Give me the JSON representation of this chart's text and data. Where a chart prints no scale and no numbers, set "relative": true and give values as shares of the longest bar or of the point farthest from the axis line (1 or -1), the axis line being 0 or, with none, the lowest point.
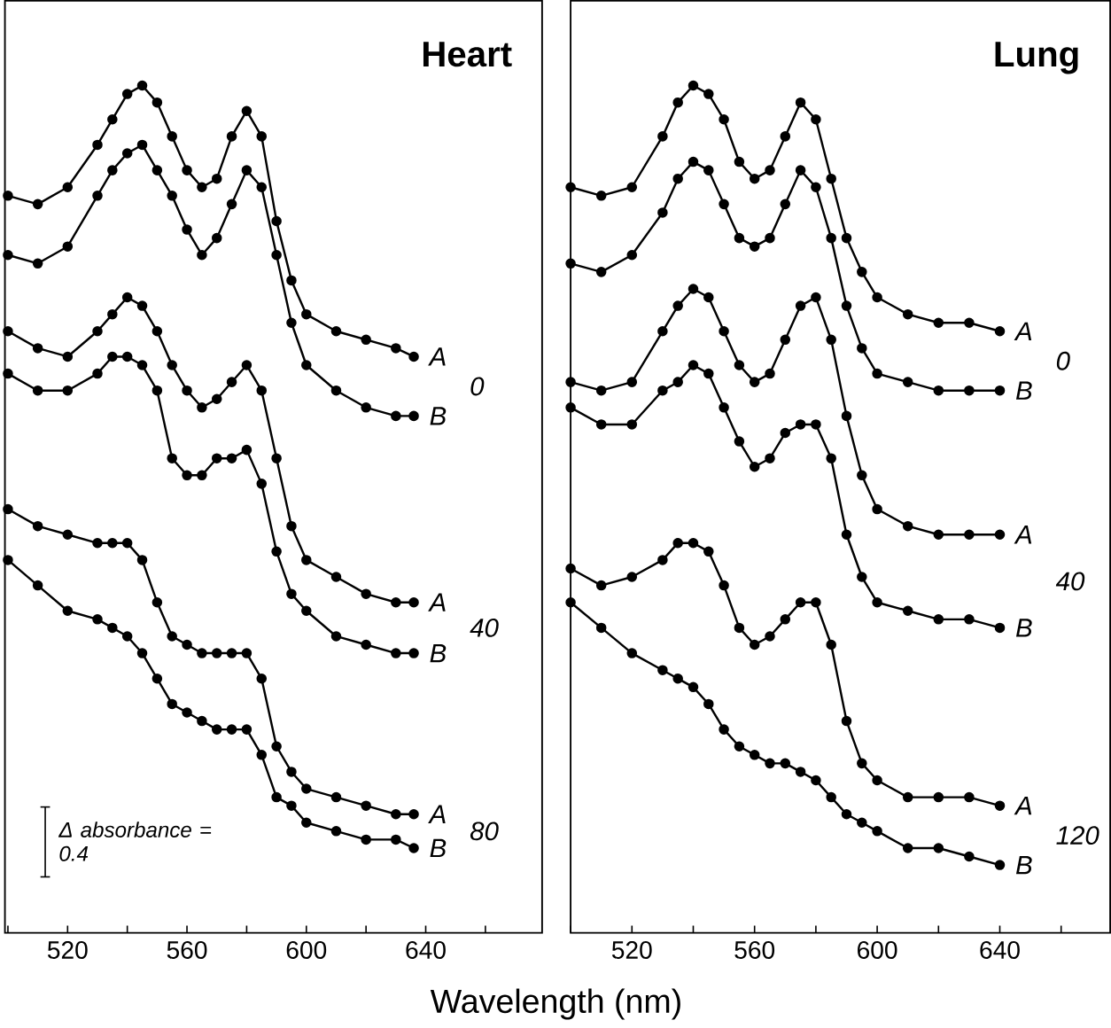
{
  "chart_data": [
    {
      "type": "line",
      "title": "Heart",
      "xlabel": "Wavelength (nm)",
      "relative": true,
      "marker": "circle",
      "line_style": "solid",
      "tick_labels": "x",
      "xlim": [
        499,
        679
      ],
      "xticks": [
        {
          "value": 500,
          "label": null
        },
        520,
        {
          "value": 540,
          "label": null
        },
        560,
        {
          "value": 580,
          "label": null
        },
        600,
        {
          "value": 620,
          "label": null
        },
        640,
        {
          "value": 660,
          "label": null
        }
      ],
      "x": [
        500,
        510,
        520,
        530,
        535,
        540,
        545,
        550,
        555,
        560,
        565,
        570,
        575,
        580,
        585,
        590,
        595,
        600,
        610,
        620,
        630,
        636
      ],
      "series": [
        {
          "name": "A",
          "color": "#000000",
          "values": [
            0.87,
            0.86,
            0.88,
            0.93,
            0.96,
            0.99,
            1.0,
            0.98,
            0.94,
            0.9,
            0.88,
            0.89,
            0.94,
            0.97,
            0.94,
            0.84,
            0.77,
            0.73,
            0.71,
            0.7,
            0.69,
            0.68
          ]
        },
        {
          "name": "B",
          "color": "#000000",
          "values": [
            0.8,
            0.79,
            0.81,
            0.87,
            0.9,
            0.92,
            0.93,
            0.9,
            0.87,
            0.83,
            0.8,
            0.82,
            0.86,
            0.9,
            0.88,
            0.8,
            0.72,
            0.67,
            0.64,
            0.62,
            0.61,
            0.61
          ]
        },
        {
          "name": "A",
          "color": "#000000",
          "values": [
            0.71,
            0.69,
            0.68,
            0.71,
            0.73,
            0.75,
            0.74,
            0.71,
            0.67,
            0.64,
            0.62,
            0.63,
            0.65,
            0.67,
            0.64,
            0.56,
            0.48,
            0.44,
            0.42,
            0.4,
            0.39,
            0.39
          ]
        },
        {
          "name": "B",
          "color": "#000000",
          "values": [
            0.66,
            0.64,
            0.64,
            0.66,
            0.68,
            0.68,
            0.67,
            0.64,
            0.56,
            0.54,
            0.54,
            0.56,
            0.56,
            0.57,
            0.53,
            0.45,
            0.4,
            0.38,
            0.35,
            0.34,
            0.33,
            0.33
          ]
        },
        {
          "name": "A",
          "color": "#000000",
          "values": [
            0.5,
            0.48,
            0.47,
            0.46,
            0.46,
            0.46,
            0.44,
            0.39,
            0.35,
            0.34,
            0.33,
            0.33,
            0.33,
            0.33,
            0.3,
            0.22,
            0.19,
            0.17,
            0.16,
            0.15,
            0.14,
            0.14
          ]
        },
        {
          "name": "B",
          "color": "#000000",
          "values": [
            0.44,
            0.41,
            0.38,
            0.37,
            0.36,
            0.35,
            0.33,
            0.3,
            0.27,
            0.26,
            0.25,
            0.24,
            0.24,
            0.24,
            0.21,
            0.16,
            0.15,
            0.13,
            0.12,
            0.11,
            0.11,
            0.1
          ]
        }
      ],
      "annotations": [
        "0",
        "40",
        "80",
        "Δ absorbance = 0.4"
      ]
    },
    {
      "type": "line",
      "title": "Lung",
      "relative": true,
      "marker": "circle",
      "line_style": "solid",
      "tick_labels": "x",
      "xlim": [
        500,
        676
      ],
      "xticks": [
        {
          "value": 500,
          "label": null
        },
        520,
        {
          "value": 540,
          "label": null
        },
        560,
        {
          "value": 580,
          "label": null
        },
        600,
        {
          "value": 620,
          "label": null
        },
        640,
        {
          "value": 660,
          "label": null
        }
      ],
      "x": [
        500,
        510,
        520,
        530,
        535,
        540,
        545,
        550,
        555,
        560,
        565,
        570,
        575,
        580,
        585,
        590,
        595,
        600,
        610,
        620,
        630,
        640
      ],
      "series": [
        {
          "name": "A",
          "color": "#000000",
          "values": [
            0.88,
            0.87,
            0.88,
            0.94,
            0.98,
            1.0,
            0.99,
            0.96,
            0.91,
            0.89,
            0.9,
            0.94,
            0.98,
            0.96,
            0.89,
            0.82,
            0.78,
            0.75,
            0.73,
            0.72,
            0.72,
            0.71
          ]
        },
        {
          "name": "B",
          "color": "#000000",
          "values": [
            0.79,
            0.78,
            0.8,
            0.85,
            0.89,
            0.91,
            0.9,
            0.86,
            0.82,
            0.81,
            0.82,
            0.86,
            0.9,
            0.88,
            0.82,
            0.74,
            0.69,
            0.66,
            0.65,
            0.64,
            0.64,
            0.64
          ]
        },
        {
          "name": "A",
          "color": "#000000",
          "values": [
            0.65,
            0.64,
            0.65,
            0.71,
            0.74,
            0.76,
            0.75,
            0.71,
            0.67,
            0.65,
            0.66,
            0.7,
            0.74,
            0.75,
            0.7,
            0.61,
            0.54,
            0.5,
            0.48,
            0.47,
            0.47,
            0.47
          ]
        },
        {
          "name": "B",
          "color": "#000000",
          "values": [
            0.62,
            0.6,
            0.6,
            0.64,
            0.65,
            0.67,
            0.66,
            0.62,
            0.58,
            0.55,
            0.56,
            0.59,
            0.6,
            0.6,
            0.56,
            0.47,
            0.42,
            0.39,
            0.38,
            0.37,
            0.37,
            0.36
          ]
        },
        {
          "name": "A",
          "color": "#000000",
          "values": [
            0.43,
            0.41,
            0.42,
            0.44,
            0.46,
            0.46,
            0.45,
            0.41,
            0.36,
            0.34,
            0.35,
            0.37,
            0.39,
            0.39,
            0.34,
            0.25,
            0.2,
            0.18,
            0.16,
            0.16,
            0.16,
            0.15
          ]
        },
        {
          "name": "B",
          "color": "#000000",
          "values": [
            0.39,
            0.36,
            0.33,
            0.31,
            0.3,
            0.29,
            0.27,
            0.24,
            0.22,
            0.21,
            0.2,
            0.2,
            0.19,
            0.18,
            0.16,
            0.14,
            0.13,
            0.12,
            0.1,
            0.1,
            0.09,
            0.08
          ]
        }
      ],
      "annotations": [
        "0",
        "40",
        "120"
      ]
    }
  ]
}
